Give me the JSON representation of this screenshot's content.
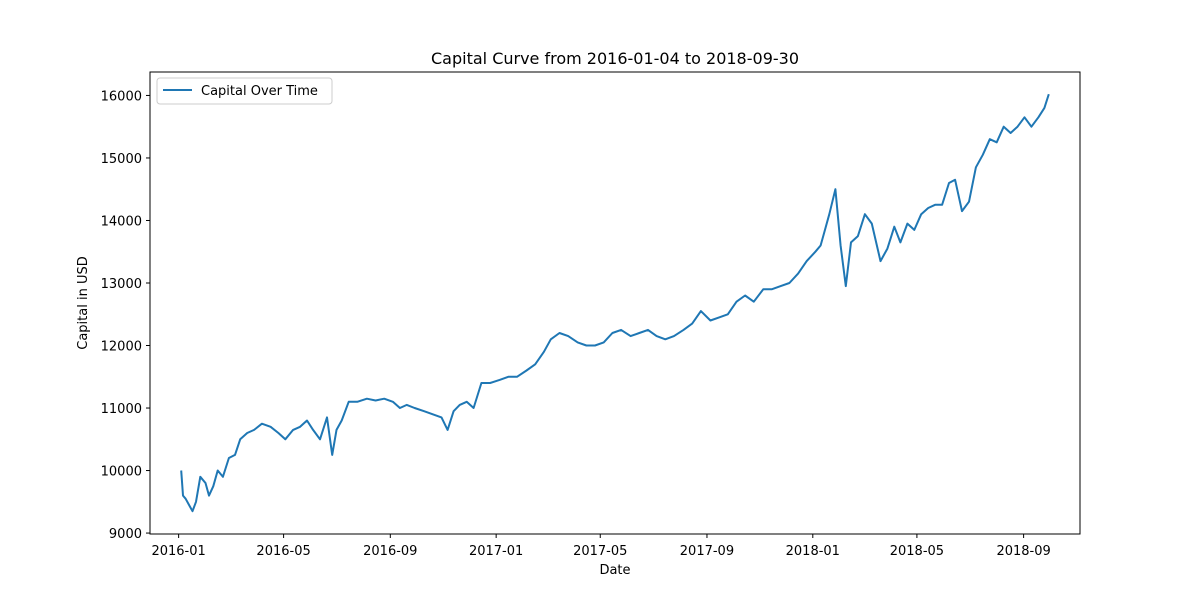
{
  "chart_data": {
    "type": "line",
    "title": "Capital Curve from 2016-01-04 to 2018-09-30",
    "xlabel": "Date",
    "ylabel": "Capital in USD",
    "x_ticks": [
      "2016-01",
      "2016-05",
      "2016-09",
      "2017-01",
      "2017-05",
      "2017-09",
      "2018-01",
      "2018-05",
      "2018-09"
    ],
    "y_ticks": [
      9000,
      10000,
      11000,
      12000,
      13000,
      14000,
      15000,
      16000
    ],
    "xlim": [
      "2015-11-29",
      "2018-11-05"
    ],
    "ylim": [
      8985,
      16375
    ],
    "grid": false,
    "legend_position": "upper left",
    "series": [
      {
        "name": "Capital Over Time",
        "color": "#1f77b4",
        "x": [
          "2016-01-04",
          "2016-01-06",
          "2016-01-09",
          "2016-01-13",
          "2016-01-17",
          "2016-01-21",
          "2016-01-26",
          "2016-02-01",
          "2016-02-05",
          "2016-02-10",
          "2016-02-15",
          "2016-02-21",
          "2016-02-28",
          "2016-03-06",
          "2016-03-12",
          "2016-03-20",
          "2016-03-28",
          "2016-04-06",
          "2016-04-16",
          "2016-04-25",
          "2016-05-03",
          "2016-05-12",
          "2016-05-20",
          "2016-05-28",
          "2016-06-04",
          "2016-06-12",
          "2016-06-20",
          "2016-06-26",
          "2016-07-01",
          "2016-07-07",
          "2016-07-15",
          "2016-07-25",
          "2016-08-05",
          "2016-08-15",
          "2016-08-25",
          "2016-09-04",
          "2016-09-12",
          "2016-09-20",
          "2016-09-29",
          "2016-10-10",
          "2016-10-20",
          "2016-10-30",
          "2016-11-06",
          "2016-11-13",
          "2016-11-20",
          "2016-11-28",
          "2016-12-06",
          "2016-12-15",
          "2016-12-25",
          "2017-01-05",
          "2017-01-15",
          "2017-01-25",
          "2017-02-05",
          "2017-02-15",
          "2017-02-25",
          "2017-03-05",
          "2017-03-15",
          "2017-03-25",
          "2017-04-05",
          "2017-04-15",
          "2017-04-25",
          "2017-05-05",
          "2017-05-15",
          "2017-05-25",
          "2017-06-05",
          "2017-06-15",
          "2017-06-25",
          "2017-07-05",
          "2017-07-15",
          "2017-07-25",
          "2017-08-05",
          "2017-08-15",
          "2017-08-25",
          "2017-09-05",
          "2017-09-15",
          "2017-09-25",
          "2017-10-05",
          "2017-10-15",
          "2017-10-25",
          "2017-11-05",
          "2017-11-15",
          "2017-11-25",
          "2017-12-05",
          "2017-12-15",
          "2017-12-25",
          "2018-01-04",
          "2018-01-10",
          "2018-01-14",
          "2018-01-20",
          "2018-01-27",
          "2018-02-02",
          "2018-02-08",
          "2018-02-14",
          "2018-02-22",
          "2018-03-02",
          "2018-03-10",
          "2018-03-20",
          "2018-03-28",
          "2018-04-05",
          "2018-04-12",
          "2018-04-20",
          "2018-04-28",
          "2018-05-06",
          "2018-05-14",
          "2018-05-22",
          "2018-05-30",
          "2018-06-07",
          "2018-06-14",
          "2018-06-22",
          "2018-06-30",
          "2018-07-08",
          "2018-07-16",
          "2018-07-24",
          "2018-08-01",
          "2018-08-09",
          "2018-08-17",
          "2018-08-25",
          "2018-09-02",
          "2018-09-10",
          "2018-09-18",
          "2018-09-25",
          "2018-09-30"
        ],
        "y": [
          10000,
          9600,
          9550,
          9450,
          9350,
          9500,
          9900,
          9800,
          9600,
          9750,
          10000,
          9900,
          10200,
          10250,
          10500,
          10600,
          10650,
          10750,
          10700,
          10600,
          10500,
          10650,
          10700,
          10800,
          10650,
          10500,
          10850,
          10250,
          10650,
          10800,
          11100,
          11100,
          11150,
          11120,
          11150,
          11100,
          11000,
          11050,
          11000,
          10950,
          10900,
          10850,
          10650,
          10950,
          11050,
          11100,
          11000,
          11400,
          11400,
          11450,
          11500,
          11500,
          11600,
          11700,
          11900,
          12100,
          12200,
          12150,
          12050,
          12000,
          12000,
          12050,
          12200,
          12250,
          12150,
          12200,
          12250,
          12150,
          12100,
          12150,
          12250,
          12350,
          12550,
          12400,
          12450,
          12500,
          12700,
          12800,
          12700,
          12900,
          12900,
          12950,
          13000,
          13150,
          13350,
          13500,
          13600,
          13800,
          14100,
          14500,
          13600,
          12950,
          13650,
          13750,
          14100,
          13950,
          13350,
          13550,
          13900,
          13650,
          13950,
          13850,
          14100,
          14200,
          14250,
          14250,
          14600,
          14650,
          14150,
          14300,
          14850,
          15050,
          15300,
          15250,
          15500,
          15400,
          15500,
          15650,
          15500,
          15650,
          15800,
          16020
        ]
      }
    ]
  }
}
